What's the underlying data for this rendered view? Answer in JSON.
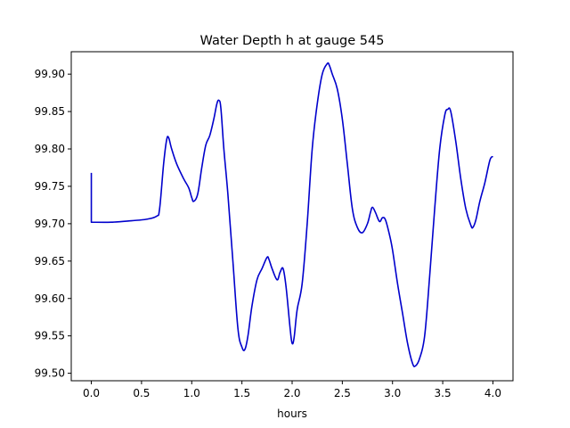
{
  "chart_data": {
    "type": "line",
    "title": "Water Depth h at gauge 545",
    "xlabel": "hours",
    "ylabel": "",
    "xlim": [
      -0.2,
      4.2
    ],
    "ylim": [
      99.49,
      99.93
    ],
    "grid": false,
    "legend": "none",
    "x_ticks": [
      0.0,
      0.5,
      1.0,
      1.5,
      2.0,
      2.5,
      3.0,
      3.5,
      4.0
    ],
    "x_tick_labels": [
      "0.0",
      "0.5",
      "1.0",
      "1.5",
      "2.0",
      "2.5",
      "3.0",
      "3.5",
      "4.0"
    ],
    "y_ticks": [
      99.5,
      99.55,
      99.6,
      99.65,
      99.7,
      99.75,
      99.8,
      99.85,
      99.9
    ],
    "y_tick_labels": [
      "99.50",
      "99.55",
      "99.60",
      "99.65",
      "99.70",
      "99.75",
      "99.80",
      "99.85",
      "99.90"
    ],
    "series": [
      {
        "color": "#0000cc",
        "x": [
          0.0,
          0.0,
          0.0,
          0.2,
          0.4,
          0.55,
          0.65,
          0.68,
          0.72,
          0.75,
          0.77,
          0.8,
          0.85,
          0.92,
          0.97,
          1.0,
          1.02,
          1.06,
          1.1,
          1.14,
          1.18,
          1.22,
          1.25,
          1.27,
          1.29,
          1.32,
          1.36,
          1.41,
          1.46,
          1.5,
          1.53,
          1.56,
          1.6,
          1.65,
          1.7,
          1.75,
          1.77,
          1.8,
          1.85,
          1.88,
          1.91,
          1.94,
          1.98,
          2.0,
          2.02,
          2.05,
          2.1,
          2.15,
          2.2,
          2.25,
          2.3,
          2.35,
          2.37,
          2.4,
          2.45,
          2.5,
          2.55,
          2.6,
          2.65,
          2.7,
          2.75,
          2.78,
          2.8,
          2.83,
          2.87,
          2.9,
          2.93,
          2.97,
          3.0,
          3.05,
          3.1,
          3.15,
          3.2,
          3.23,
          3.27,
          3.32,
          3.37,
          3.42,
          3.47,
          3.52,
          3.55,
          3.58,
          3.63,
          3.68,
          3.73,
          3.78,
          3.8,
          3.83,
          3.87,
          3.92,
          3.97,
          4.0
        ],
        "y": [
          99.768,
          99.702,
          99.702,
          99.702,
          99.704,
          99.706,
          99.71,
          99.72,
          99.78,
          99.812,
          99.815,
          99.8,
          99.78,
          99.76,
          99.748,
          99.735,
          99.73,
          99.74,
          99.775,
          99.805,
          99.818,
          99.84,
          99.86,
          99.865,
          99.855,
          99.8,
          99.74,
          99.65,
          99.56,
          99.535,
          99.532,
          99.55,
          99.59,
          99.625,
          99.64,
          99.655,
          99.652,
          99.64,
          99.625,
          99.635,
          99.64,
          99.615,
          99.56,
          99.54,
          99.548,
          99.585,
          99.62,
          99.7,
          99.8,
          99.86,
          99.9,
          99.914,
          99.912,
          99.9,
          99.88,
          99.84,
          99.78,
          99.72,
          99.695,
          99.688,
          99.7,
          99.715,
          99.722,
          99.715,
          99.703,
          99.708,
          99.705,
          99.685,
          99.665,
          99.62,
          99.58,
          99.54,
          99.513,
          99.51,
          99.52,
          99.55,
          99.63,
          99.72,
          99.8,
          99.845,
          99.853,
          99.85,
          99.81,
          99.76,
          99.72,
          99.698,
          99.695,
          99.705,
          99.73,
          99.755,
          99.785,
          99.79
        ]
      }
    ]
  }
}
